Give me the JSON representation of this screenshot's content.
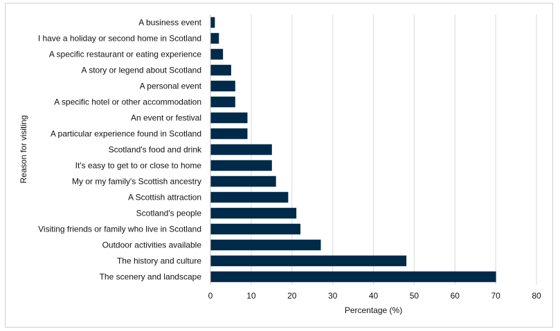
{
  "chart_data": {
    "type": "bar",
    "orientation": "horizontal",
    "title": "",
    "xlabel": "Percentage (%)",
    "ylabel": "Reason for visiting",
    "xlim": [
      0,
      80
    ],
    "xticks": [
      0,
      10,
      20,
      30,
      40,
      50,
      60,
      70,
      80
    ],
    "grid": "vertical",
    "bar_color": "#002a4a",
    "categories": [
      "A business event",
      "I have a holiday or second home in Scotland",
      "A specific restaurant or eating experience",
      "A story or legend about Scotland",
      "A personal event",
      "A specific hotel or other accommodation",
      "An event or festival",
      "A particular experience found in Scotland",
      "Scotland's food and drink",
      "It's easy to get to or close to home",
      "My or my family's Scottish ancestry",
      "A Scottish attraction",
      "Scotland's people",
      "Visiting friends or family who live in Scotland",
      "Outdoor activities available",
      "The history and culture",
      "The scenery and landscape"
    ],
    "values": [
      1,
      2,
      3,
      5,
      6,
      6,
      9,
      9,
      15,
      15,
      16,
      19,
      21,
      22,
      27,
      48,
      70
    ]
  }
}
